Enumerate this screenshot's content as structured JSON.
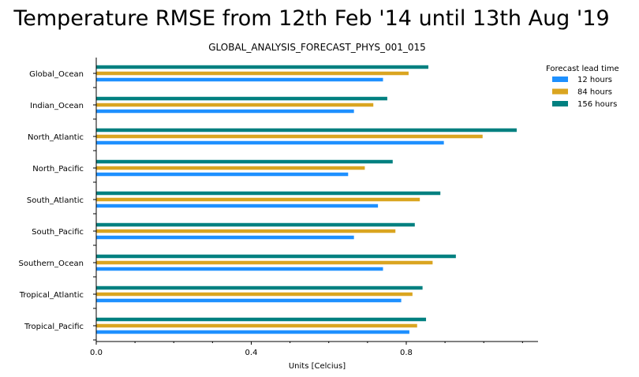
{
  "chart_data": {
    "type": "bar",
    "orientation": "horizontal",
    "title": "Temperature RMSE from 12th Feb '14 until 13th Aug '19",
    "subtitle": "GLOBAL_ANALYSIS_FORECAST_PHYS_001_015",
    "xlabel": "Units [Celcius]",
    "ylabel": "",
    "xlim": [
      0,
      1.14
    ],
    "xticks": [
      0.0,
      0.4,
      0.8
    ],
    "xtick_labels": [
      "0.0",
      "0.4",
      "0.8"
    ],
    "grid": false,
    "legend_title": "Forecast lead time",
    "legend_placement": "top-right",
    "categories": [
      "Global_Ocean",
      "Indian_Ocean",
      "North_Atlantic",
      "North_Pacific",
      "South_Atlantic",
      "South_Pacific",
      "Southern_Ocean",
      "Tropical_Atlantic",
      "Tropical_Pacific"
    ],
    "series": [
      {
        "name": "12 hours",
        "color": "#1e90ff",
        "values": [
          0.74,
          0.665,
          0.897,
          0.65,
          0.727,
          0.665,
          0.74,
          0.787,
          0.808
        ]
      },
      {
        "name": "84 hours",
        "color": "#daa520",
        "values": [
          0.806,
          0.715,
          0.997,
          0.693,
          0.835,
          0.772,
          0.868,
          0.816,
          0.828
        ]
      },
      {
        "name": "156 hours",
        "color": "#008080",
        "values": [
          0.857,
          0.751,
          1.085,
          0.765,
          0.888,
          0.822,
          0.928,
          0.842,
          0.851
        ]
      }
    ]
  }
}
